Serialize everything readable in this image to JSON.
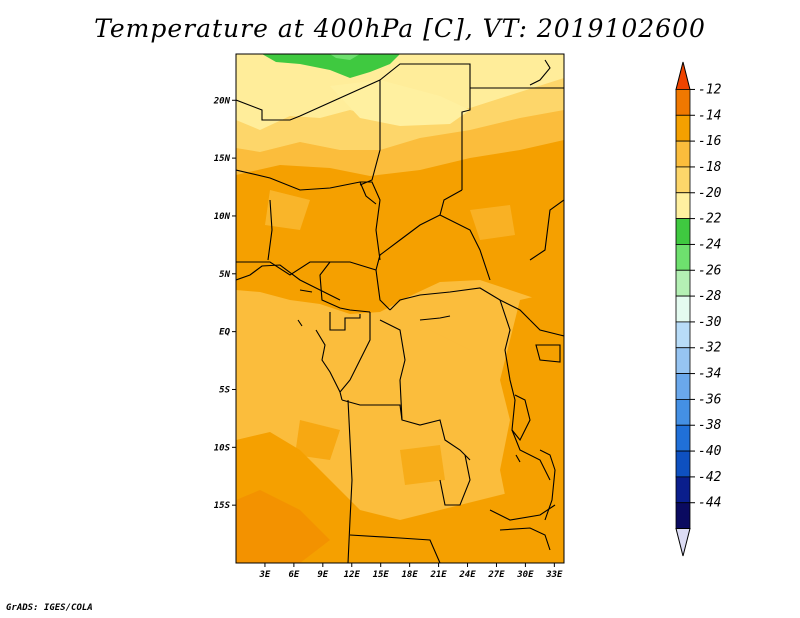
{
  "title": "Temperature at 400hPa [C], VT: 2019102600",
  "credit": "GrADS: IGES/COLA",
  "map": {
    "lon_range": [
      0,
      34
    ],
    "lat_range": [
      -20,
      24
    ],
    "lat_ticks": [
      {
        "value": 20,
        "label": "20N"
      },
      {
        "value": 15,
        "label": "15N"
      },
      {
        "value": 10,
        "label": "10N"
      },
      {
        "value": 5,
        "label": "5N"
      },
      {
        "value": 0,
        "label": "EQ"
      },
      {
        "value": -5,
        "label": "5S"
      },
      {
        "value": -10,
        "label": "10S"
      },
      {
        "value": -15,
        "label": "15S"
      }
    ],
    "lon_ticks": [
      {
        "value": 3,
        "label": "3E"
      },
      {
        "value": 6,
        "label": "6E"
      },
      {
        "value": 9,
        "label": "9E"
      },
      {
        "value": 12,
        "label": "12E"
      },
      {
        "value": 15,
        "label": "15E"
      },
      {
        "value": 18,
        "label": "18E"
      },
      {
        "value": 21,
        "label": "21E"
      },
      {
        "value": 24,
        "label": "24E"
      },
      {
        "value": 27,
        "label": "27E"
      },
      {
        "value": 30,
        "label": "30E"
      },
      {
        "value": 33,
        "label": "33E"
      }
    ]
  },
  "colorbar": {
    "levels": [
      "-12",
      "-14",
      "-16",
      "-18",
      "-20",
      "-22",
      "-24",
      "-26",
      "-28",
      "-30",
      "-32",
      "-34",
      "-36",
      "-38",
      "-40",
      "-42",
      "-44"
    ],
    "colors": [
      "#ee4400",
      "#f07800",
      "#f5a000",
      "#fbbd3c",
      "#fdd66a",
      "#fff0a0",
      "#3fc940",
      "#6ee06e",
      "#b4f0b4",
      "#e4fbf0",
      "#b8dcf8",
      "#96c4f2",
      "#6aa8ec",
      "#4490e4",
      "#2070d8",
      "#0e50c0",
      "#0a1e8c",
      "#0a0a60",
      "#dcdcf4"
    ]
  },
  "chart_data": {
    "type": "heatmap",
    "title": "Temperature at 400hPa [C], VT: 2019102600",
    "field": "temperature at 400 hPa",
    "units": "C",
    "valid_time": "2019102600",
    "lon_range": [
      0,
      34
    ],
    "lat_range": [
      -20,
      24
    ],
    "contour_levels": [
      -44,
      -42,
      -40,
      -38,
      -36,
      -34,
      -32,
      -30,
      -28,
      -26,
      -24,
      -22,
      -20,
      -18,
      -16,
      -14,
      -12
    ],
    "regions": [
      {
        "area": "far north near 23N, 8-13E",
        "range_c": "-24 to -22"
      },
      {
        "area": "north 18-23N",
        "range_c": "-20 to -18"
      },
      {
        "area": "Sahel / central 5-17N",
        "range_c": "-16 to -14"
      },
      {
        "area": "Congo basin / equatorial",
        "range_c": "-18 to -16"
      },
      {
        "area": "south 10-20S",
        "range_c": "-18 to -14"
      },
      {
        "area": "East Africa lakes region 28-34E",
        "range_c": "-16 to -14"
      }
    ]
  }
}
